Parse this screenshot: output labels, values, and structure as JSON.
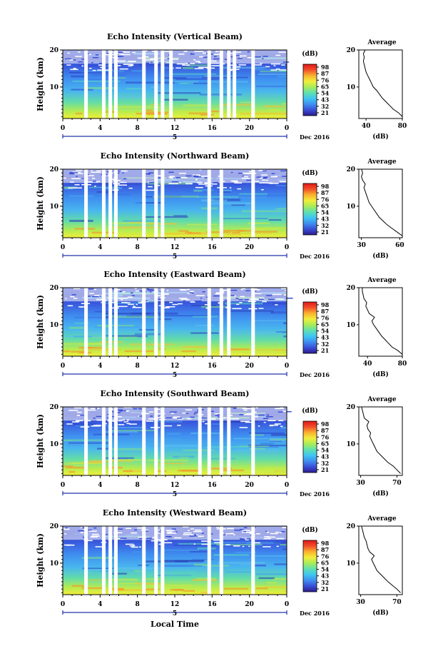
{
  "footer_label": "Local Time",
  "colorbar": {
    "unit": "(dB)",
    "stops": [
      "#2b1b8e",
      "#3a4fd6",
      "#3f8ff0",
      "#3fc6f2",
      "#5fe0b0",
      "#a8ec5a",
      "#f2ee3a",
      "#f9b22e",
      "#f1502a",
      "#e01818"
    ]
  },
  "shared": {
    "ylabel": "Height (km)",
    "yticks": [
      "20",
      "10"
    ],
    "xticks": [
      "0",
      "4",
      "8",
      "12",
      "16",
      "20",
      "0"
    ],
    "date_marker": "5",
    "month_label": "Dec 2016",
    "average_title": "Average",
    "average_xlabel": "(dB)"
  },
  "chart_data": [
    {
      "type": "heatmap",
      "title": "Echo Intensity (Vertical Beam)",
      "ylabel": "Height (km)",
      "xlabel": "Local Time",
      "x_range_hours": [
        0,
        24
      ],
      "y_range_km": [
        1.5,
        20
      ],
      "colorbar_ticks": [
        "98",
        "87",
        "76",
        "65",
        "54",
        "43",
        "32",
        "21"
      ],
      "gaps_hours": [
        2.3,
        4.2,
        4.9,
        5.5,
        8.5,
        9.8,
        10.5,
        11.4,
        15.5,
        16.8,
        17.6,
        18.2,
        20.2
      ],
      "average_profile": {
        "type": "line",
        "title": "Average",
        "xlabel": "(dB)",
        "xticks": [
          "40",
          "80"
        ],
        "xlim": [
          32,
          80
        ],
        "yticks": [
          "20",
          "10"
        ],
        "ylim": [
          1.5,
          20
        ],
        "height_km": [
          2,
          3,
          4,
          5,
          6,
          7,
          8,
          9,
          10,
          11,
          12,
          13,
          14,
          15,
          16,
          17,
          18,
          19,
          20
        ],
        "values_db": [
          80,
          76,
          70,
          66,
          62,
          58,
          55,
          52,
          48,
          46,
          44,
          42,
          40,
          39,
          38,
          37,
          38,
          37,
          39
        ]
      }
    },
    {
      "type": "heatmap",
      "title": "Echo Intensity (Northward Beam)",
      "ylabel": "Height (km)",
      "xlabel": "Local Time",
      "x_range_hours": [
        0,
        24
      ],
      "y_range_km": [
        1.5,
        20
      ],
      "colorbar_ticks": [
        "98",
        "87",
        "76",
        "65",
        "54",
        "43",
        "32",
        "21"
      ],
      "gaps_hours": [
        2.3,
        4.2,
        4.9,
        5.5,
        8.5,
        9.8,
        10.5,
        15.5,
        16.8,
        20.2
      ],
      "average_profile": {
        "type": "line",
        "title": "Average",
        "xlabel": "(dB)",
        "xticks": [
          "30",
          "60"
        ],
        "xlim": [
          28,
          62
        ],
        "yticks": [
          "20",
          "10"
        ],
        "ylim": [
          1.5,
          20
        ],
        "height_km": [
          2,
          3,
          4,
          5,
          6,
          7,
          8,
          9,
          10,
          11,
          12,
          13,
          14,
          15,
          16,
          17,
          18,
          19,
          20
        ],
        "values_db": [
          62,
          58,
          54,
          50,
          47,
          44,
          42,
          40,
          38,
          36,
          35,
          34,
          33,
          32,
          33,
          31,
          30,
          31,
          30
        ]
      }
    },
    {
      "type": "heatmap",
      "title": "Echo Intensity (Eastward Beam)",
      "ylabel": "Height (km)",
      "xlabel": "Local Time",
      "x_range_hours": [
        0,
        24
      ],
      "y_range_km": [
        1.5,
        20
      ],
      "colorbar_ticks": [
        "98",
        "87",
        "76",
        "65",
        "54",
        "43",
        "32",
        "21"
      ],
      "gaps_hours": [
        2.3,
        4.2,
        4.9,
        5.5,
        8.5,
        9.8,
        10.5,
        15.5,
        16.8,
        17.6,
        20.2
      ],
      "average_profile": {
        "type": "line",
        "title": "Average",
        "xlabel": "(dB)",
        "xticks": [
          "40",
          "80"
        ],
        "xlim": [
          30,
          80
        ],
        "yticks": [
          "20",
          "10"
        ],
        "ylim": [
          1.5,
          20
        ],
        "height_km": [
          2,
          3,
          4,
          5,
          6,
          7,
          8,
          9,
          10,
          11,
          12,
          13,
          14,
          15,
          16,
          17,
          18,
          19,
          20
        ],
        "values_db": [
          80,
          75,
          68,
          64,
          60,
          56,
          53,
          50,
          47,
          45,
          48,
          42,
          40,
          38,
          39,
          36,
          35,
          34,
          34
        ]
      }
    },
    {
      "type": "heatmap",
      "title": "Echo Intensity (Southward Beam)",
      "ylabel": "Height (km)",
      "xlabel": "Local Time",
      "x_range_hours": [
        0,
        24
      ],
      "y_range_km": [
        1.5,
        20
      ],
      "colorbar_ticks": [
        "98",
        "87",
        "76",
        "65",
        "54",
        "43",
        "32",
        "21"
      ],
      "gaps_hours": [
        2.3,
        4.2,
        4.9,
        5.5,
        8.5,
        9.8,
        10.5,
        14.5,
        15.5,
        16.8,
        17.6,
        20.2
      ],
      "average_profile": {
        "type": "line",
        "title": "Average",
        "xlabel": "(dB)",
        "xticks": [
          "30",
          "70"
        ],
        "xlim": [
          28,
          76
        ],
        "yticks": [
          "20",
          "10"
        ],
        "ylim": [
          1.5,
          20
        ],
        "height_km": [
          2,
          3,
          4,
          5,
          6,
          7,
          8,
          9,
          10,
          11,
          12,
          13,
          14,
          15,
          16,
          17,
          18,
          19,
          20
        ],
        "values_db": [
          74,
          70,
          66,
          60,
          56,
          52,
          48,
          46,
          44,
          42,
          40,
          41,
          38,
          37,
          39,
          34,
          33,
          32,
          31
        ]
      }
    },
    {
      "type": "heatmap",
      "title": "Echo Intensity (Westward Beam)",
      "ylabel": "Height (km)",
      "xlabel": "Local Time",
      "x_range_hours": [
        0,
        24
      ],
      "y_range_km": [
        1.5,
        20
      ],
      "colorbar_ticks": [
        "98",
        "87",
        "76",
        "65",
        "54",
        "43",
        "32",
        "21"
      ],
      "gaps_hours": [
        2.3,
        4.2,
        4.9,
        5.5,
        8.5,
        9.8,
        10.5,
        15.5,
        16.8,
        20.2
      ],
      "average_profile": {
        "type": "line",
        "title": "Average",
        "xlabel": "(dB)",
        "xticks": [
          "30",
          "70"
        ],
        "xlim": [
          28,
          76
        ],
        "yticks": [
          "20",
          "10"
        ],
        "ylim": [
          1.5,
          20
        ],
        "height_km": [
          2,
          3,
          4,
          5,
          6,
          7,
          8,
          9,
          10,
          11,
          12,
          13,
          14,
          15,
          16,
          17,
          18,
          19,
          20
        ],
        "values_db": [
          74,
          70,
          65,
          60,
          56,
          52,
          48,
          46,
          44,
          42,
          45,
          40,
          38,
          37,
          36,
          34,
          33,
          32,
          31
        ]
      }
    }
  ]
}
